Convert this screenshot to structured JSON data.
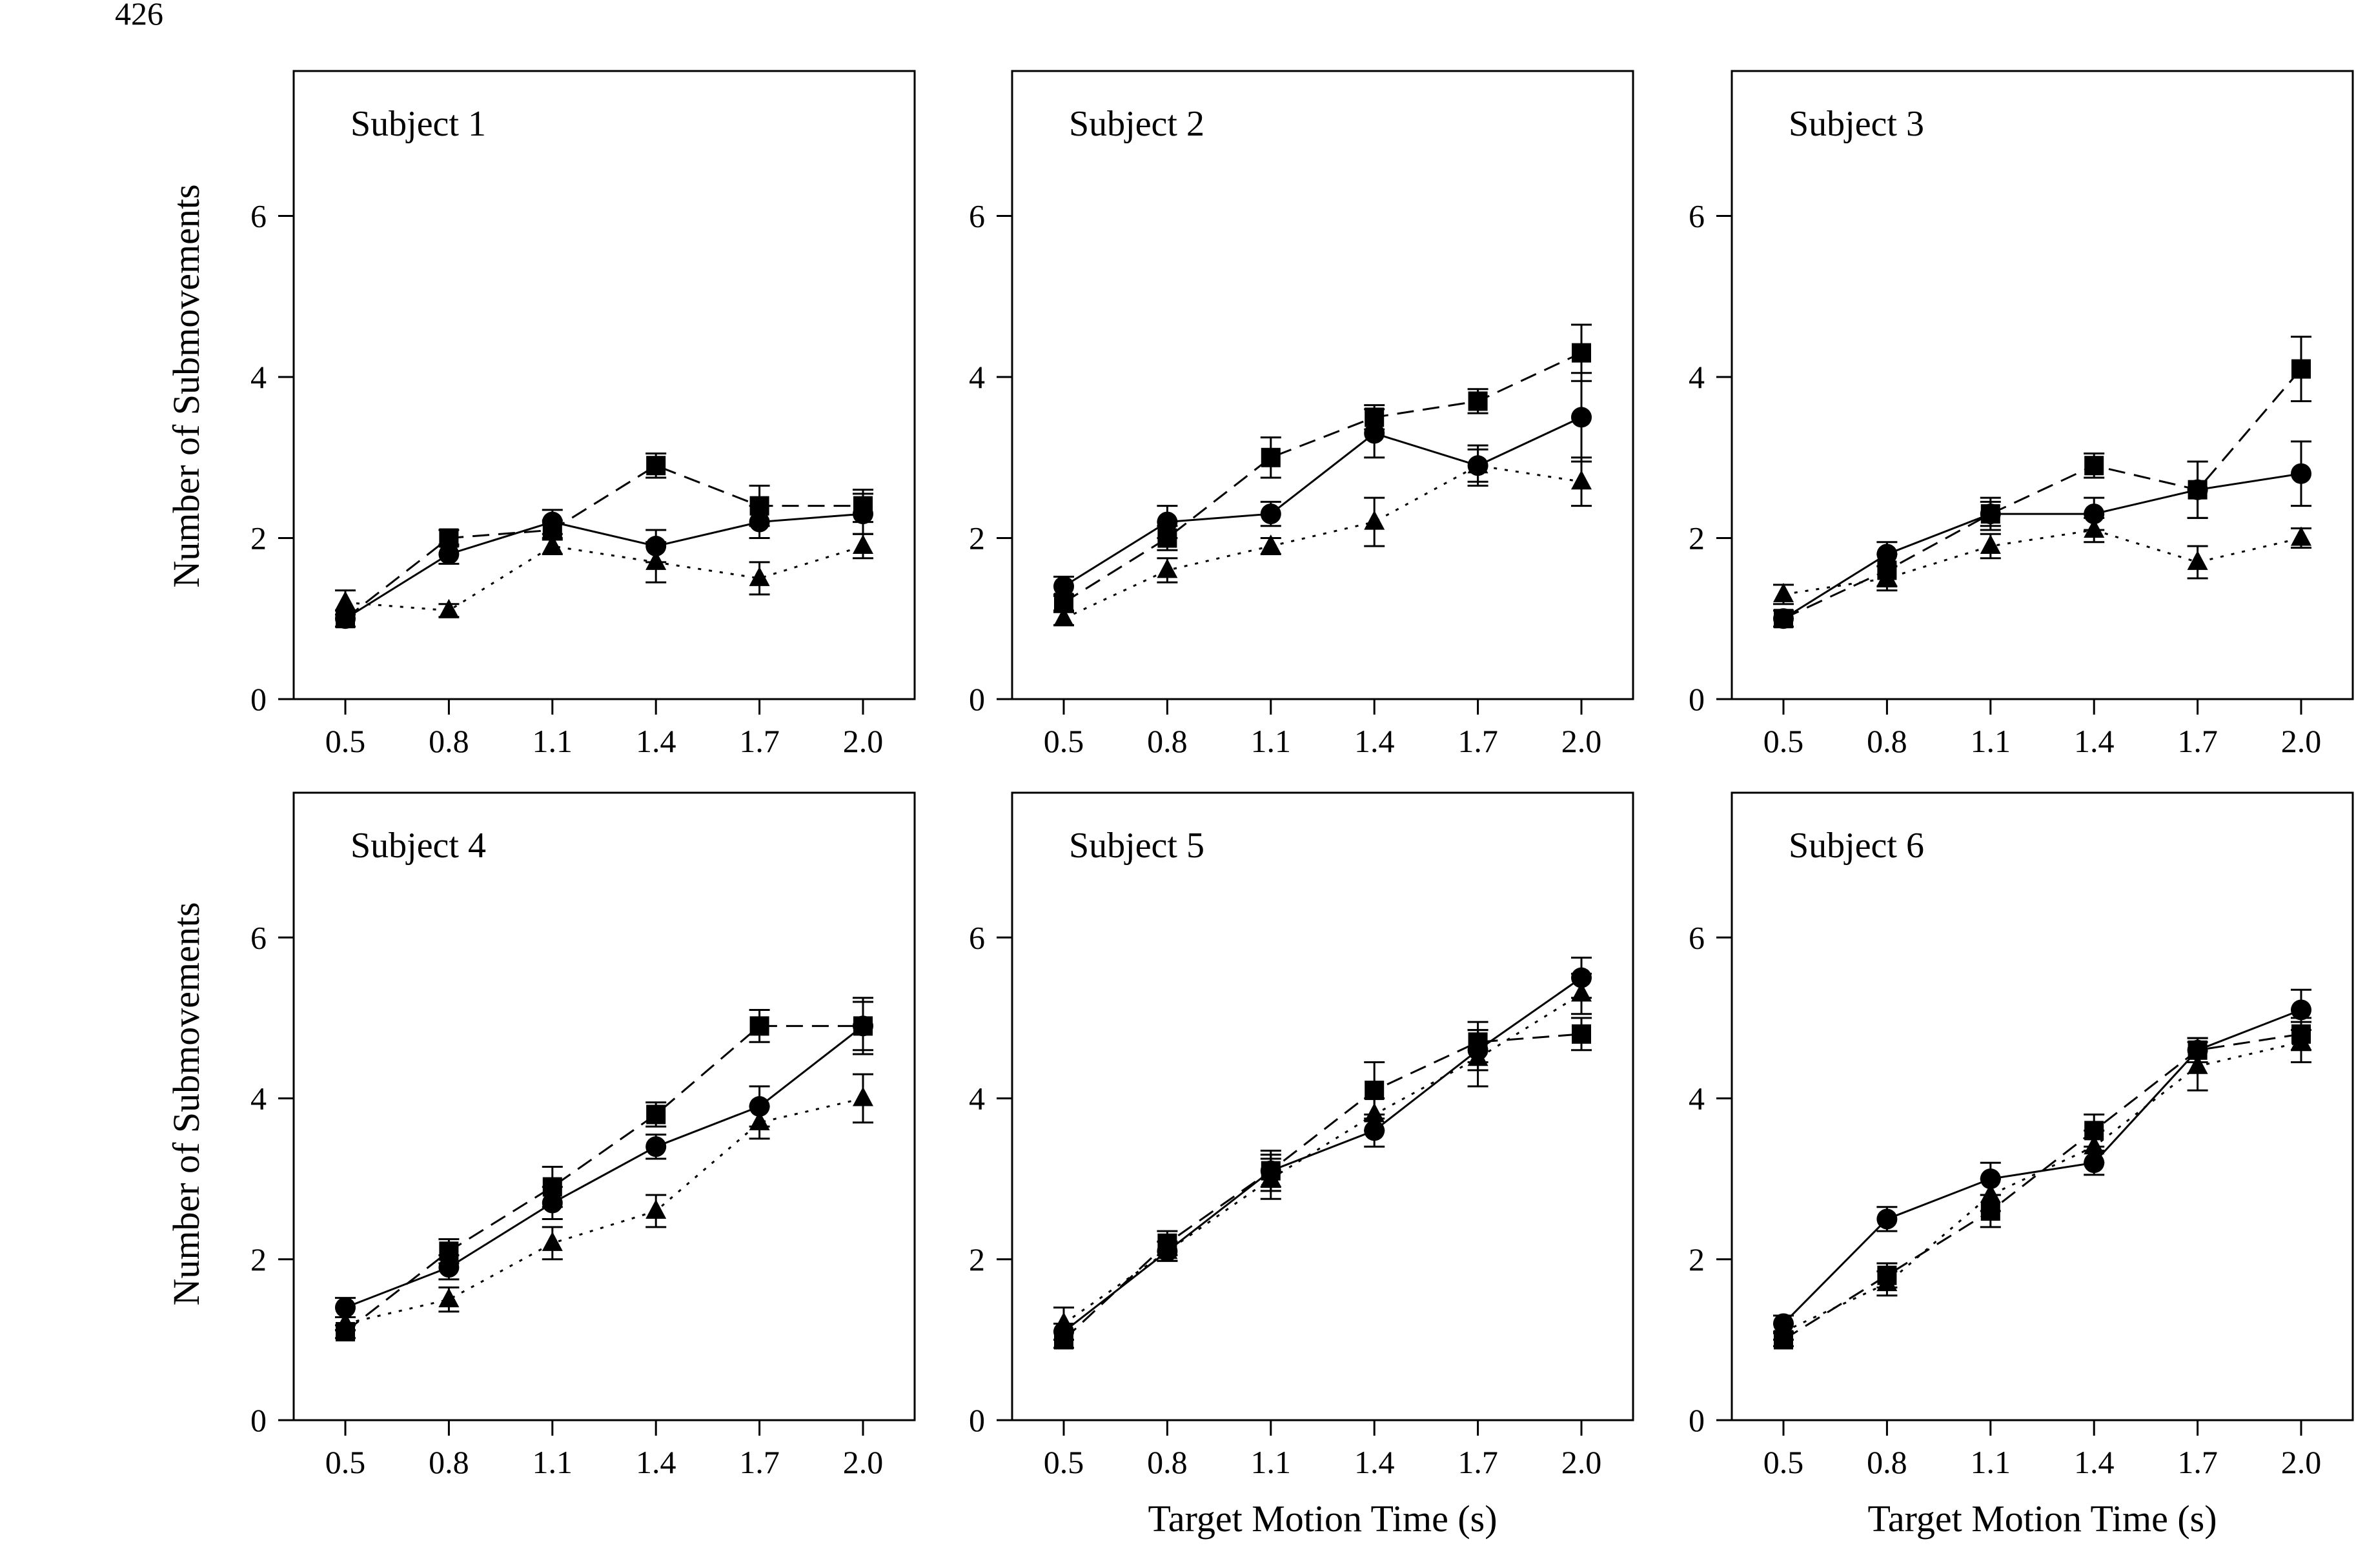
{
  "page_number": "426",
  "shared": {
    "ylabel": "Number of Submovements",
    "xlabel": "Target Motion Time (s)",
    "x_tick_labels": [
      "0.5",
      "0.8",
      "1.1",
      "1.4",
      "1.7",
      "2.0"
    ],
    "y_tick_labels": [
      "0",
      "2",
      "4",
      "6"
    ]
  },
  "chart_data": [
    {
      "type": "line",
      "title": "Subject 1",
      "x": [
        0.5,
        0.8,
        1.1,
        1.4,
        1.7,
        2.0
      ],
      "ylim": [
        0,
        7.8
      ],
      "xlabel": "",
      "ylabel": "Number of Submovements",
      "series": [
        {
          "marker": "circle",
          "style": "solid",
          "values": [
            1.0,
            1.8,
            2.2,
            1.9,
            2.2,
            2.3
          ],
          "errors": [
            0.1,
            0.12,
            0.15,
            0.2,
            0.2,
            0.25
          ]
        },
        {
          "marker": "square",
          "style": "dashed",
          "values": [
            1.0,
            2.0,
            2.1,
            2.9,
            2.4,
            2.4
          ],
          "errors": [
            0.1,
            0.1,
            0.12,
            0.15,
            0.25,
            0.2
          ]
        },
        {
          "marker": "triangle",
          "style": "dotted",
          "values": [
            1.2,
            1.1,
            1.9,
            1.7,
            1.5,
            1.9
          ],
          "errors": [
            0.15,
            0.08,
            0.1,
            0.25,
            0.2,
            0.15
          ]
        }
      ]
    },
    {
      "type": "line",
      "title": "Subject 2",
      "x": [
        0.5,
        0.8,
        1.1,
        1.4,
        1.7,
        2.0
      ],
      "ylim": [
        0,
        7.8
      ],
      "xlabel": "",
      "ylabel": "",
      "series": [
        {
          "marker": "circle",
          "style": "solid",
          "values": [
            1.4,
            2.2,
            2.3,
            3.3,
            2.9,
            3.5
          ],
          "errors": [
            0.12,
            0.2,
            0.15,
            0.3,
            0.25,
            0.55
          ]
        },
        {
          "marker": "square",
          "style": "dashed",
          "values": [
            1.2,
            2.0,
            3.0,
            3.5,
            3.7,
            4.3
          ],
          "errors": [
            0.1,
            0.15,
            0.25,
            0.15,
            0.15,
            0.35
          ]
        },
        {
          "marker": "triangle",
          "style": "dotted",
          "values": [
            1.0,
            1.6,
            1.9,
            2.2,
            2.9,
            2.7
          ],
          "errors": [
            0.08,
            0.15,
            0.1,
            0.3,
            0.2,
            0.3
          ]
        }
      ]
    },
    {
      "type": "line",
      "title": "Subject 3",
      "x": [
        0.5,
        0.8,
        1.1,
        1.4,
        1.7,
        2.0
      ],
      "ylim": [
        0,
        7.8
      ],
      "xlabel": "",
      "ylabel": "",
      "series": [
        {
          "marker": "circle",
          "style": "solid",
          "values": [
            1.0,
            1.8,
            2.3,
            2.3,
            2.6,
            2.8
          ],
          "errors": [
            0.1,
            0.15,
            0.15,
            0.2,
            0.35,
            0.4
          ]
        },
        {
          "marker": "square",
          "style": "dashed",
          "values": [
            1.0,
            1.6,
            2.3,
            2.9,
            2.6,
            4.1
          ],
          "errors": [
            0.1,
            0.2,
            0.2,
            0.15,
            0.35,
            0.4
          ]
        },
        {
          "marker": "triangle",
          "style": "dotted",
          "values": [
            1.3,
            1.5,
            1.9,
            2.1,
            1.7,
            2.0
          ],
          "errors": [
            0.12,
            0.15,
            0.15,
            0.15,
            0.2,
            0.12
          ]
        }
      ]
    },
    {
      "type": "line",
      "title": "Subject 4",
      "x": [
        0.5,
        0.8,
        1.1,
        1.4,
        1.7,
        2.0
      ],
      "ylim": [
        0,
        7.8
      ],
      "xlabel": "",
      "ylabel": "Number of Submovements",
      "series": [
        {
          "marker": "circle",
          "style": "solid",
          "values": [
            1.4,
            1.9,
            2.7,
            3.4,
            3.9,
            4.9
          ],
          "errors": [
            0.12,
            0.15,
            0.2,
            0.15,
            0.25,
            0.3
          ]
        },
        {
          "marker": "square",
          "style": "dashed",
          "values": [
            1.1,
            2.1,
            2.9,
            3.8,
            4.9,
            4.9
          ],
          "errors": [
            0.08,
            0.15,
            0.25,
            0.15,
            0.2,
            0.35
          ]
        },
        {
          "marker": "triangle",
          "style": "dotted",
          "values": [
            1.2,
            1.5,
            2.2,
            2.6,
            3.7,
            4.0
          ],
          "errors": [
            0.08,
            0.15,
            0.2,
            0.2,
            0.2,
            0.3
          ]
        }
      ]
    },
    {
      "type": "line",
      "title": "Subject 5",
      "x": [
        0.5,
        0.8,
        1.1,
        1.4,
        1.7,
        2.0
      ],
      "ylim": [
        0,
        7.8
      ],
      "xlabel": "Target Motion Time (s)",
      "ylabel": "",
      "series": [
        {
          "marker": "circle",
          "style": "solid",
          "values": [
            1.1,
            2.1,
            3.1,
            3.6,
            4.6,
            5.5
          ],
          "errors": [
            0.1,
            0.12,
            0.2,
            0.2,
            0.25,
            0.25
          ]
        },
        {
          "marker": "square",
          "style": "dashed",
          "values": [
            1.0,
            2.2,
            3.1,
            4.1,
            4.7,
            4.8
          ],
          "errors": [
            0.1,
            0.15,
            0.25,
            0.35,
            0.25,
            0.2
          ]
        },
        {
          "marker": "triangle",
          "style": "dotted",
          "values": [
            1.2,
            2.1,
            3.0,
            3.8,
            4.5,
            5.3
          ],
          "errors": [
            0.2,
            0.12,
            0.25,
            0.2,
            0.35,
            0.25
          ]
        }
      ]
    },
    {
      "type": "line",
      "title": "Subject 6",
      "x": [
        0.5,
        0.8,
        1.1,
        1.4,
        1.7,
        2.0
      ],
      "ylim": [
        0,
        7.8
      ],
      "xlabel": "Target Motion Time (s)",
      "ylabel": "",
      "series": [
        {
          "marker": "circle",
          "style": "solid",
          "values": [
            1.2,
            2.5,
            3.0,
            3.2,
            4.6,
            5.1
          ],
          "errors": [
            0.1,
            0.15,
            0.2,
            0.15,
            0.15,
            0.25
          ]
        },
        {
          "marker": "square",
          "style": "dashed",
          "values": [
            1.0,
            1.8,
            2.6,
            3.6,
            4.6,
            4.8
          ],
          "errors": [
            0.08,
            0.15,
            0.2,
            0.2,
            0.15,
            0.2
          ]
        },
        {
          "marker": "triangle",
          "style": "dotted",
          "values": [
            1.1,
            1.7,
            2.8,
            3.4,
            4.4,
            4.7
          ],
          "errors": [
            0.1,
            0.15,
            0.2,
            0.2,
            0.3,
            0.25
          ]
        }
      ]
    }
  ]
}
